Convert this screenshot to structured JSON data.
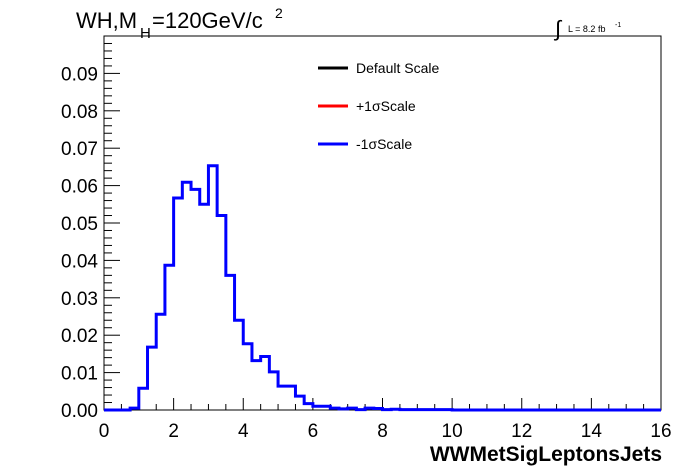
{
  "chart_data": {
    "type": "line",
    "title_main": "WH,M",
    "title_sub": "H",
    "title_rest": "=120GeV/c",
    "title_sup": "2",
    "lumi_label": "L = 8.2 fb",
    "lumi_sup": "-1",
    "xlabel": "WWMetSigLeptonsJets",
    "ylabel": "",
    "xlim": [
      0,
      16
    ],
    "ylim": [
      0,
      0.1
    ],
    "x_ticks": [
      "0",
      "2",
      "4",
      "6",
      "8",
      "10",
      "12",
      "14",
      "16"
    ],
    "y_ticks": [
      "0.00",
      "0.01",
      "0.02",
      "0.03",
      "0.04",
      "0.05",
      "0.06",
      "0.07",
      "0.08",
      "0.09"
    ],
    "bin_width": 0.25,
    "bin_start": 0,
    "legend": [
      {
        "label": "Default Scale",
        "color": "#000000"
      },
      {
        "label": "+1σScale",
        "color": "#ff0000"
      },
      {
        "label": "-1σScale",
        "color": "#0000ff"
      }
    ],
    "series": [
      {
        "name": "-1σScale",
        "color": "#0000ff",
        "values": [
          0,
          0,
          0,
          0.0005,
          0.0058,
          0.0168,
          0.0256,
          0.0387,
          0.0567,
          0.0609,
          0.059,
          0.055,
          0.0653,
          0.052,
          0.036,
          0.024,
          0.0177,
          0.0132,
          0.0143,
          0.0102,
          0.0064,
          0.0064,
          0.0037,
          0.0017,
          0.001,
          0.001,
          0.0005,
          0.0003,
          0.0005,
          0.0001,
          0.0005,
          0.0004,
          0.0001,
          0.0002,
          0.0001,
          0.0001,
          0.0001,
          0.0001,
          0.0001,
          0.0001,
          0,
          0,
          0,
          0,
          0,
          0,
          0,
          0,
          0,
          0,
          0,
          0,
          0,
          0,
          0,
          0,
          0,
          0,
          0,
          0,
          0,
          0,
          0,
          0
        ]
      }
    ]
  }
}
